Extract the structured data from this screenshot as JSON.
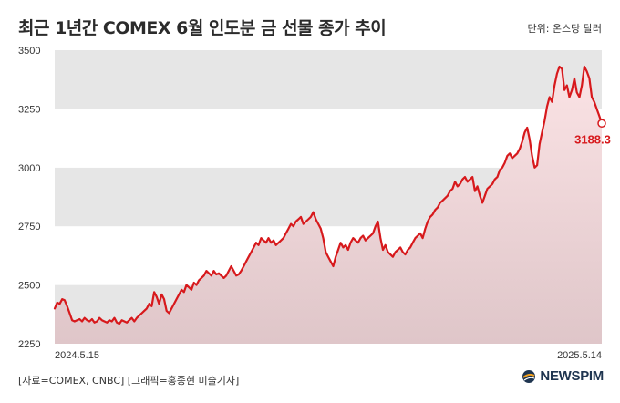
{
  "header": {
    "title": "최근 1년간 COMEX 6월 인도분 금 선물 종가 추이",
    "unit_label": "단위: 온스당 달러"
  },
  "footer": {
    "source": "[자료=COMEX, CNBC] [그래픽=홍종현 미술기자]",
    "logo_text": "NEWSPIM",
    "logo_icon": "globe-icon"
  },
  "colors": {
    "line": "#d7191c",
    "band_dark": "#e6e6e6",
    "band_light": "#ffffff",
    "fill_top": "#fbe3e5",
    "fill_bottom": "#dfc6c9",
    "label": "#d7191c"
  },
  "chart_data": {
    "type": "area",
    "title": "최근 1년간 COMEX 6월 인도분 금 선물 종가 추이",
    "ylabel": "단위: 온스당 달러",
    "ylim": [
      2250,
      3500
    ],
    "yticks": [
      2250,
      2500,
      2750,
      3000,
      3250,
      3500
    ],
    "x_start_label": "2024.5.15",
    "x_end_label": "2025.5.14",
    "last_value_label": "3188.3",
    "grid": true,
    "legend": "none",
    "series": [
      {
        "values": [
          2400,
          2425,
          2420,
          2440,
          2435,
          2410,
          2380,
          2350,
          2345,
          2350,
          2355,
          2345,
          2360,
          2350,
          2345,
          2355,
          2340,
          2345,
          2360,
          2350,
          2345,
          2340,
          2350,
          2345,
          2360,
          2340,
          2335,
          2350,
          2345,
          2340,
          2350,
          2360,
          2345,
          2360,
          2370,
          2380,
          2390,
          2400,
          2420,
          2410,
          2470,
          2450,
          2420,
          2460,
          2440,
          2390,
          2380,
          2400,
          2420,
          2440,
          2460,
          2480,
          2470,
          2500,
          2490,
          2480,
          2510,
          2500,
          2520,
          2530,
          2540,
          2560,
          2550,
          2540,
          2560,
          2545,
          2550,
          2540,
          2530,
          2540,
          2560,
          2580,
          2560,
          2540,
          2545,
          2560,
          2580,
          2600,
          2620,
          2640,
          2660,
          2680,
          2670,
          2700,
          2690,
          2680,
          2700,
          2680,
          2690,
          2670,
          2680,
          2690,
          2700,
          2720,
          2740,
          2760,
          2750,
          2770,
          2780,
          2790,
          2760,
          2770,
          2780,
          2790,
          2810,
          2780,
          2760,
          2740,
          2700,
          2640,
          2620,
          2600,
          2580,
          2620,
          2650,
          2680,
          2660,
          2670,
          2650,
          2680,
          2700,
          2690,
          2680,
          2700,
          2710,
          2690,
          2700,
          2710,
          2720,
          2750,
          2770,
          2700,
          2650,
          2670,
          2640,
          2630,
          2620,
          2640,
          2650,
          2660,
          2640,
          2630,
          2650,
          2660,
          2680,
          2700,
          2710,
          2720,
          2700,
          2740,
          2770,
          2790,
          2800,
          2820,
          2830,
          2850,
          2860,
          2870,
          2880,
          2900,
          2910,
          2940,
          2920,
          2930,
          2950,
          2960,
          2940,
          2950,
          2960,
          2900,
          2920,
          2880,
          2850,
          2880,
          2910,
          2920,
          2930,
          2950,
          2960,
          2990,
          3000,
          3020,
          3050,
          3060,
          3040,
          3050,
          3060,
          3080,
          3110,
          3150,
          3170,
          3120,
          3050,
          3000,
          3010,
          3100,
          3150,
          3200,
          3260,
          3300,
          3280,
          3350,
          3400,
          3430,
          3420,
          3330,
          3350,
          3300,
          3330,
          3380,
          3320,
          3300,
          3350,
          3430,
          3410,
          3380,
          3300,
          3280,
          3250,
          3220,
          3188.3
        ]
      }
    ]
  }
}
